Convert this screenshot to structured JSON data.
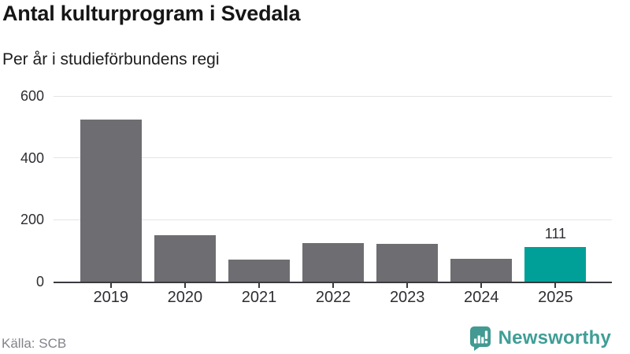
{
  "header": {
    "title": "Antal kulturprogram i Svedala",
    "subtitle": "Per år i studieförbundens regi"
  },
  "chart_data": {
    "type": "bar",
    "title": "Antal kulturprogram i Svedala",
    "subtitle": "Per år i studieförbundens regi",
    "categories": [
      "2019",
      "2020",
      "2021",
      "2022",
      "2023",
      "2024",
      "2025"
    ],
    "values": [
      523,
      150,
      72,
      125,
      122,
      75,
      111
    ],
    "value_labels": [
      null,
      null,
      null,
      null,
      null,
      null,
      "111"
    ],
    "highlight_index": 6,
    "xlabel": "",
    "ylabel": "",
    "yticks": [
      0,
      200,
      400,
      600
    ],
    "ylim": [
      0,
      600
    ],
    "grid": true,
    "legend": false,
    "colors": {
      "bar": "#6e6d72",
      "highlight": "#00a099",
      "grid": "#e4e4e4",
      "axis": "#3a3a3f",
      "tick_label": "#2e2e33"
    }
  },
  "footer": {
    "source": "Källa: SCB",
    "brand": "Newsworthy",
    "brand_color": "#3f9e96"
  }
}
